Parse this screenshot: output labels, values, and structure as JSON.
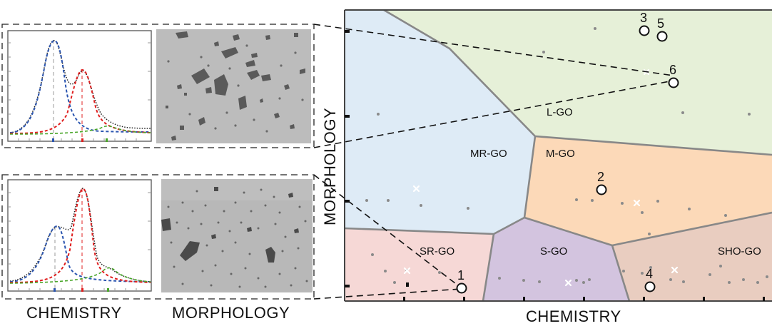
{
  "bottom_left_labels": {
    "chemistry": "CHEMISTRY",
    "morphology": "MORPHOLOGY"
  },
  "map": {
    "x_axis_label": "CHEMISTRY",
    "y_axis_label": "MORPHOLOGY",
    "regions": [
      {
        "id": "L-GO",
        "label": "L-GO",
        "color": "#e6f0d8"
      },
      {
        "id": "MR-GO",
        "label": "MR-GO",
        "color": "#deebf6"
      },
      {
        "id": "M-GO",
        "label": "M-GO",
        "color": "#fcd9b8"
      },
      {
        "id": "SR-GO",
        "label": "SR-GO",
        "color": "#f6d8d6"
      },
      {
        "id": "S-GO",
        "label": "S-GO",
        "color": "#d3c4df"
      },
      {
        "id": "SHO-GO",
        "label": "SHO-GO",
        "color": "#e9cdc0"
      }
    ],
    "points": [
      {
        "label": "1"
      },
      {
        "label": "2"
      },
      {
        "label": "3"
      },
      {
        "label": "4"
      },
      {
        "label": "5"
      },
      {
        "label": "6"
      }
    ]
  },
  "spectra": [
    {
      "name": "top-spectrum",
      "curves": [
        {
          "name": "blue",
          "color": "#2b55b0"
        },
        {
          "name": "red",
          "color": "#e02020"
        },
        {
          "name": "green",
          "color": "#4aa62a"
        },
        {
          "name": "black",
          "color": "#222222"
        }
      ]
    },
    {
      "name": "bottom-spectrum",
      "curves": [
        {
          "name": "blue",
          "color": "#2b55b0"
        },
        {
          "name": "red",
          "color": "#e02020"
        },
        {
          "name": "green",
          "color": "#4aa62a"
        },
        {
          "name": "black",
          "color": "#222222"
        }
      ]
    }
  ],
  "colors": {
    "border": "#888888",
    "micrograph_bg": "#bcbcbc",
    "particle": "#5a5a5a"
  }
}
